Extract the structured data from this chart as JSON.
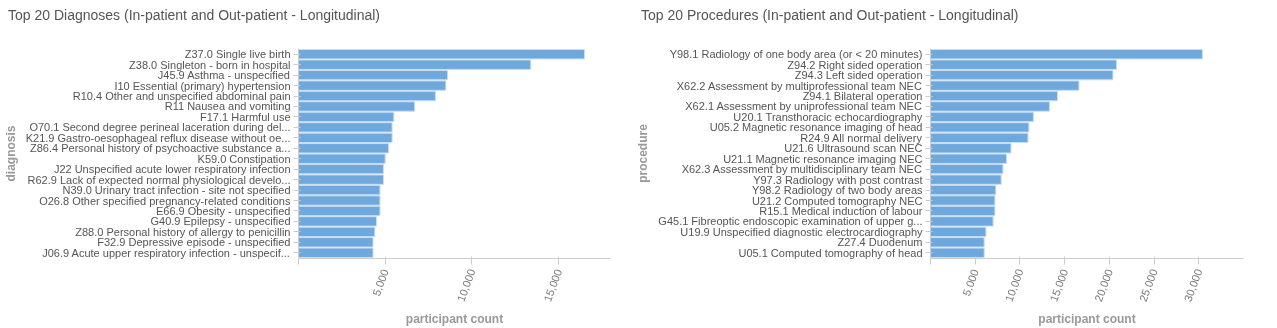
{
  "chart_data": [
    {
      "type": "bar",
      "orientation": "horizontal",
      "title": "Top 20 Diagnoses (In-patient and Out-patient - Longitudinal)",
      "xlabel": "participant count",
      "ylabel": "diagnosis",
      "color": "#6fa8dc",
      "categories": [
        "Z37.0 Single live birth",
        "Z38.0 Singleton - born in hospital",
        "J45.9 Asthma - unspecified",
        "I10 Essential (primary) hypertension",
        "R10.4 Other and unspecified abdominal pain",
        "R11 Nausea and vomiting",
        "F17.1 Harmful use",
        "O70.1 Second degree perineal laceration during del...",
        "K21.9 Gastro-oesophageal reflux disease without oe...",
        "Z86.4 Personal history of psychoactive substance a...",
        "K59.0 Constipation",
        "J22 Unspecified acute lower respiratory infection",
        "R62.9 Lack of expected normal physiological develo...",
        "N39.0 Urinary tract infection - site not specified",
        "O26.8 Other specified pregnancy-related conditions",
        "E66.9 Obesity - unspecified",
        "G40.9 Epilepsy - unspecified",
        "Z88.0 Personal history of allergy to penicillin",
        "F32.9 Depressive episode - unspecified",
        "J06.9 Acute upper respiratory infection - unspecif..."
      ],
      "values": [
        16500,
        13400,
        8600,
        8500,
        7900,
        6700,
        5500,
        5400,
        5400,
        5200,
        5000,
        4900,
        4900,
        4700,
        4700,
        4700,
        4500,
        4400,
        4300,
        4300
      ],
      "xlim": [
        0,
        18000
      ],
      "xticks": [
        {
          "value": 0,
          "label": null
        },
        {
          "value": 5000,
          "label": "5,000"
        },
        {
          "value": 10000,
          "label": "10,000"
        },
        {
          "value": 15000,
          "label": "15,000"
        }
      ]
    },
    {
      "type": "bar",
      "orientation": "horizontal",
      "title": "Top 20 Procedures (In-patient and Out-patient - Longitudinal)",
      "xlabel": "participant count",
      "ylabel": "procedure",
      "color": "#6fa8dc",
      "categories": [
        "Y98.1 Radiology of one body area (or < 20 minutes)",
        "Z94.2 Right sided operation",
        "Z94.3 Left sided operation",
        "X62.2 Assessment by multiprofessional team NEC",
        "Z94.1 Bilateral operation",
        "X62.1 Assessment by uniprofessional team NEC",
        "U20.1 Transthoracic echocardiography",
        "U05.2 Magnetic resonance imaging of head",
        "R24.9 All normal delivery",
        "U21.6 Ultrasound scan NEC",
        "U21.1 Magnetic resonance imaging NEC",
        "X62.3 Assessment by multidisciplinary team NEC",
        "Y97.3 Radiology with post contrast",
        "Y98.2 Radiology of two body areas",
        "U21.2 Computed tomography NEC",
        "R15.1 Medical induction of labour",
        "G45.1 Fibreoptic endoscopic examination of upper g...",
        "U19.9 Unspecified diagnostic electrocardiography",
        "Z27.4 Duodenum",
        "U05.1 Computed tomography of head"
      ],
      "values": [
        30400,
        20800,
        20400,
        16600,
        14200,
        13300,
        11500,
        11000,
        10900,
        9000,
        8500,
        8100,
        7900,
        7300,
        7200,
        7200,
        7000,
        6200,
        6000,
        6000
      ],
      "xlim": [
        0,
        35000
      ],
      "xticks": [
        {
          "value": 0,
          "label": null
        },
        {
          "value": 5000,
          "label": "5,000"
        },
        {
          "value": 10000,
          "label": "10,000"
        },
        {
          "value": 15000,
          "label": "15,000"
        },
        {
          "value": 20000,
          "label": "20,000"
        },
        {
          "value": 25000,
          "label": "25,000"
        },
        {
          "value": 30000,
          "label": "30,000"
        }
      ]
    }
  ]
}
